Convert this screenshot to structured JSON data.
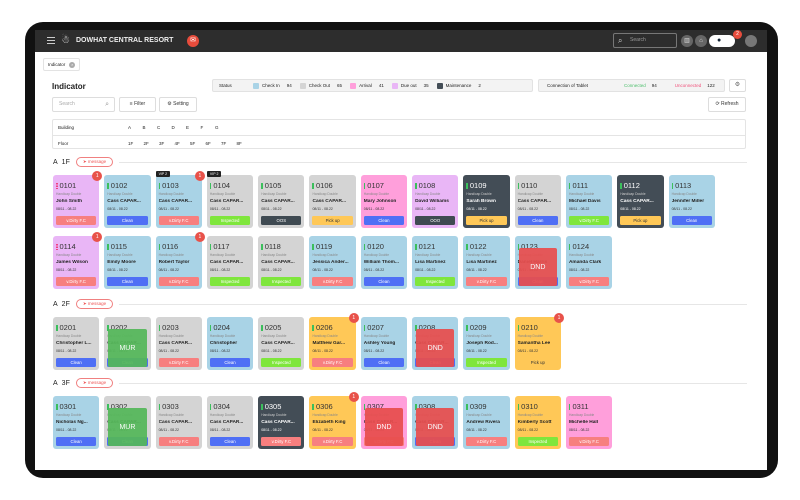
{
  "header": {
    "title": "DOWHAT CENTRAL RESORT",
    "search_placeholder": "Search",
    "notification_count": "2"
  },
  "tab": {
    "label": "Indicator"
  },
  "page_title": "Indicator",
  "status": {
    "label": "Status",
    "items": [
      {
        "label": "Check In",
        "count": "94",
        "color": "#a9d3e6"
      },
      {
        "label": "Check Out",
        "count": "65",
        "color": "#d4d4d4"
      },
      {
        "label": "Arrival",
        "count": "41",
        "color": "#ff9fdb"
      },
      {
        "label": "Due out",
        "count": "35",
        "color": "#e9b6f6"
      },
      {
        "label": "Maintenance",
        "count": "2",
        "color": "#434d56"
      }
    ]
  },
  "connection": {
    "label": "Connection of Tablet",
    "connected_label": "Connected",
    "connected": "94",
    "unconnected_label": "Unconnected",
    "unconnected": "122"
  },
  "toolbar": {
    "search_placeholder": "Search",
    "filter": "Filter",
    "setting": "Setting",
    "refresh": "Refresh"
  },
  "filters": {
    "building_label": "Building",
    "buildings": [
      "A",
      "B",
      "C",
      "D",
      "E",
      "F",
      "G"
    ],
    "floor_label": "Floor",
    "floors": [
      "1F",
      "2F",
      "3F",
      "4F",
      "5F",
      "6F",
      "7F",
      "8F"
    ]
  },
  "colors": {
    "blue": "#a9d3e6",
    "gray": "#d4d4d4",
    "pink": "#ff9fdb",
    "lavender": "#e9b6f6",
    "dark": "#434d56",
    "yellow": "#ffc857",
    "Clean": "#4f6ff5",
    "v.Dirty F.C": "#f77f7f",
    "Inspected": "#7fe63c",
    "OOS": "#3f4a52",
    "OOO": "#3f4a52",
    "Pick up": "#ffc857",
    "DND": "#e84e4e",
    "MUR": "#55b85a"
  },
  "room_type": "Handicap Double",
  "sections": [
    {
      "building": "A",
      "floor": "1F",
      "message": "message",
      "rooms": [
        {
          "n": "0101",
          "c": "lavender",
          "name": "John Smith",
          "date": "08/11 - 08.22",
          "act": "v.Dirty F.C",
          "badge": "1",
          "ind": "p"
        },
        {
          "n": "0102",
          "c": "blue",
          "name": "Cass  CAPAR...",
          "date": "08/11 - 08.22",
          "act": "Clean"
        },
        {
          "n": "0103",
          "c": "blue",
          "name": "Cass  CAPAR...",
          "date": "08/11 - 08.22",
          "act": "v.Dirty F.C",
          "badge": "1",
          "vip": "VIP 2"
        },
        {
          "n": "0104",
          "c": "gray",
          "name": "Cass  CAPAR...",
          "date": "08/11 - 08.22",
          "act": "Inspected",
          "vip": "VIP 2"
        },
        {
          "n": "0105",
          "c": "gray",
          "name": "Cass  CAPAR...",
          "date": "08/11 - 08.22",
          "act": "OOS"
        },
        {
          "n": "0106",
          "c": "gray",
          "name": "Cass  CAPAR...",
          "date": "08/11 - 08.22",
          "act": "Pick up"
        },
        {
          "n": "0107",
          "c": "pink",
          "name": "Mary Johnson",
          "date": "08/11 - 08.22",
          "act": "Clean"
        },
        {
          "n": "0108",
          "c": "lavender",
          "name": "David Williams",
          "date": "08/11 - 08.22",
          "act": "OOO"
        },
        {
          "n": "0109",
          "c": "dark",
          "name": "Sarah Brown",
          "date": "08/11 - 08.22",
          "act": "Pick up"
        },
        {
          "n": "0110",
          "c": "gray",
          "name": "Cass  CAPAR...",
          "date": "08/11 - 08.22",
          "act": "Clean"
        },
        {
          "n": "0111",
          "c": "blue",
          "name": "Michael Davis",
          "date": "08/11 - 08.22",
          "act": "v.Dirty F.C",
          "actc": "Inspected"
        },
        {
          "n": "0112",
          "c": "dark",
          "name": "Cass  CAPAR...",
          "date": "08/11 - 08.22",
          "act": "Pick up"
        },
        {
          "n": "0113",
          "c": "blue",
          "name": "Jennifer Miller",
          "date": "08/11 - 08.22",
          "act": "Clean"
        },
        {
          "n": "0114",
          "c": "lavender",
          "name": "James Wilson",
          "date": "08/11 - 08.22",
          "act": "v.Dirty F.C",
          "badge": "1",
          "ind": "p"
        },
        {
          "n": "0115",
          "c": "blue",
          "name": "Emily Moore",
          "date": "08/11 - 08.22",
          "act": "Clean"
        },
        {
          "n": "0116",
          "c": "blue",
          "name": "Robert Taylor",
          "date": "08/11 - 08.22",
          "act": "v.Dirty F.C",
          "badge": "1"
        },
        {
          "n": "0117",
          "c": "gray",
          "name": "Cass  CAPAR...",
          "date": "08/11 - 08.22",
          "act": "Inspected"
        },
        {
          "n": "0118",
          "c": "gray",
          "name": "Cass  CAPAR...",
          "date": "08/11 - 08.22",
          "act": "Inspected"
        },
        {
          "n": "0119",
          "c": "blue",
          "name": "Jessica Ander...",
          "date": "08/11 - 08.22",
          "act": "v.Dirty F.C"
        },
        {
          "n": "0120",
          "c": "blue",
          "name": "William Thom...",
          "date": "08/11 - 08.22",
          "act": "Clean"
        },
        {
          "n": "0121",
          "c": "blue",
          "name": "Lisa Martinez",
          "date": "08/11 - 08.22",
          "act": "Inspected"
        },
        {
          "n": "0122",
          "c": "blue",
          "name": "Lisa Martinez",
          "date": "08/11 - 08.22",
          "act": "v.Dirty F.C"
        },
        {
          "n": "0123",
          "c": "blue",
          "name": "Daniel Harris",
          "date": "08/11 - 08.22",
          "act": "Clean",
          "ov": "DND"
        },
        {
          "n": "0124",
          "c": "blue",
          "name": "Amanda Clark",
          "date": "08/11 - 08.22",
          "act": "v.Dirty F.C"
        }
      ]
    },
    {
      "building": "A",
      "floor": "2F",
      "message": "message",
      "rooms": [
        {
          "n": "0201",
          "c": "gray",
          "name": "Christopher L...",
          "date": "08/11 - 08.22",
          "act": "Clean"
        },
        {
          "n": "0202",
          "c": "gray",
          "name": "Cass  CAPAR...",
          "date": "08/11 - 08.22",
          "act": "Clean",
          "ov": "MUR"
        },
        {
          "n": "0203",
          "c": "gray",
          "name": "Cass  CAPAR...",
          "date": "08/11 - 08.22",
          "act": "v.Dirty F.C"
        },
        {
          "n": "0204",
          "c": "blue",
          "name": "Christopher",
          "date": "08/11 - 08.22",
          "act": "Clean"
        },
        {
          "n": "0205",
          "c": "gray",
          "name": "Cass  CAPAR...",
          "date": "08/11 - 08.22",
          "act": "Inspected"
        },
        {
          "n": "0206",
          "c": "yellow",
          "name": "Matthew Gar...",
          "date": "08/11 - 08.22",
          "act": "v.Dirty F.C",
          "badge": "1"
        },
        {
          "n": "0207",
          "c": "blue",
          "name": "Ashley Young",
          "date": "08/11 - 08.22",
          "act": "Clean"
        },
        {
          "n": "0208",
          "c": "blue",
          "name": "Cass  CAPAR...",
          "date": "08/11 - 08.22",
          "act": "Clean",
          "ov": "DND"
        },
        {
          "n": "0209",
          "c": "blue",
          "name": "Joseph Rod...",
          "date": "08/11 - 08.22",
          "act": "Inspected"
        },
        {
          "n": "0210",
          "c": "yellow",
          "name": "Samantha Lee",
          "date": "08/11 - 08.22",
          "act": "Pick up",
          "badge": "1"
        }
      ]
    },
    {
      "building": "A",
      "floor": "3F",
      "message": "message",
      "rooms": [
        {
          "n": "0301",
          "c": "blue",
          "name": "Nicholas Ng...",
          "date": "08/11 - 08.22",
          "act": "Clean"
        },
        {
          "n": "0302",
          "c": "gray",
          "name": "Cass  CAPAR...",
          "date": "08/11 - 08.22",
          "act": "Clean",
          "ov": "MUR"
        },
        {
          "n": "0303",
          "c": "gray",
          "name": "Cass  CAPAR...",
          "date": "08/11 - 08.22",
          "act": "v.Dirty F.C"
        },
        {
          "n": "0304",
          "c": "gray",
          "name": "Cass  CAPAR...",
          "date": "08/11 - 08.22",
          "act": "Clean"
        },
        {
          "n": "0305",
          "c": "dark",
          "name": "Cass  CAPAR...",
          "date": "08/11 - 08.22",
          "act": "v.Dirty F.C"
        },
        {
          "n": "0306",
          "c": "yellow",
          "name": "Elizabeth King",
          "date": "08/11 - 08.22",
          "act": "v.Dirty F.C",
          "badge": "1"
        },
        {
          "n": "0307",
          "c": "pink",
          "name": "Cass  CAPAR...",
          "date": "08/11 - 08.22",
          "act": "v.Dirty F.C",
          "ov": "DND"
        },
        {
          "n": "0308",
          "c": "blue",
          "name": "Cass  CAPAR...",
          "date": "08/11 - 08.22",
          "act": "Clean",
          "ov": "DND"
        },
        {
          "n": "0309",
          "c": "blue",
          "name": "Andrew Rivera",
          "date": "08/11 - 08.22",
          "act": "v.Dirty F.C"
        },
        {
          "n": "0310",
          "c": "yellow",
          "name": "Kimberly Scott",
          "date": "08/11 - 08.22",
          "act": "Inspected"
        },
        {
          "n": "0311",
          "c": "pink",
          "name": "Michelle Hall",
          "date": "08/11 - 08.22",
          "act": "v.Dirty F.C"
        }
      ]
    }
  ]
}
